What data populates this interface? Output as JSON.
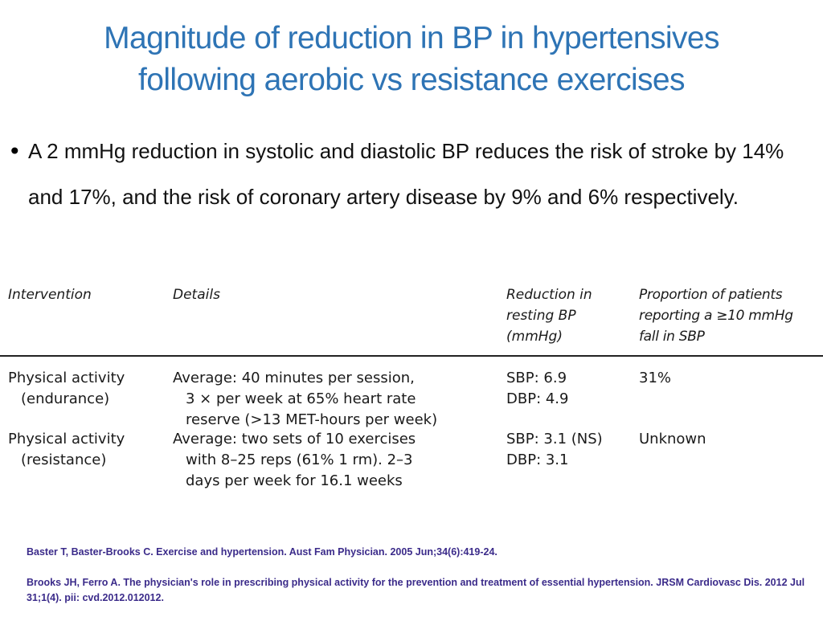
{
  "slide": {
    "title_line1": "Magnitude of reduction in BP in hypertensives",
    "title_line2": "following aerobic vs resistance exercises",
    "bullet_symbol": "•",
    "bullet_text": "A 2 mmHg reduction in systolic and diastolic BP reduces the risk of stroke by 14% and 17%, and the risk of coronary artery disease by 9% and 6% respectively."
  },
  "table": {
    "headers": {
      "intervention": "Intervention",
      "details": "Details",
      "reduction": [
        "Reduction in",
        "resting BP",
        "(mmHg)"
      ],
      "proportion": [
        "Proportion of patients",
        "reporting a ≥10 mmHg",
        "fall in SBP"
      ]
    },
    "rows": [
      {
        "intervention": [
          "Physical activity",
          "(endurance)"
        ],
        "details": [
          "Average: 40 minutes per session,",
          "3 × per week at 65% heart rate",
          "reserve (>13 MET-hours per week)"
        ],
        "reduction": [
          "SBP: 6.9",
          "DBP: 4.9"
        ],
        "proportion": "31%"
      },
      {
        "intervention": [
          "Physical activity",
          "(resistance)"
        ],
        "details": [
          "Average: two sets of 10 exercises",
          "with 8–25 reps (61% 1 rm). 2–3",
          "days per week for 16.1 weeks"
        ],
        "reduction": [
          "SBP: 3.1 (NS)",
          "DBP: 3.1"
        ],
        "proportion": "Unknown"
      }
    ]
  },
  "references": [
    "Baster T, Baster-Brooks C. Exercise and hypertension. Aust Fam Physician. 2005 Jun;34(6):419-24.",
    "Brooks JH, Ferro A. The physician's role in prescribing physical activity for the prevention and treatment of essential hypertension. JRSM Cardiovasc Dis. 2012 Jul 31;1(4). pii: cvd.2012.012012."
  ]
}
